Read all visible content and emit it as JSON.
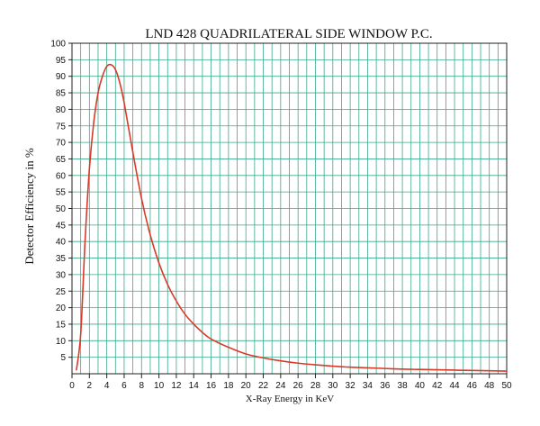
{
  "chart_data": {
    "type": "line",
    "title": "LND 428 QUADRILATERAL SIDE WINDOW P.C.",
    "xlabel": "X-Ray Energy in KeV",
    "ylabel": "Detector Efficiency in %",
    "xlim": [
      0,
      50
    ],
    "ylim": [
      0,
      100
    ],
    "xticks": [
      0,
      2,
      4,
      6,
      8,
      10,
      12,
      14,
      16,
      18,
      20,
      22,
      24,
      26,
      28,
      30,
      32,
      34,
      36,
      38,
      40,
      42,
      44,
      46,
      48,
      50
    ],
    "yticks": [
      5,
      10,
      15,
      20,
      25,
      30,
      35,
      40,
      45,
      50,
      55,
      60,
      65,
      70,
      75,
      80,
      85,
      90,
      95,
      100
    ],
    "grid": true,
    "colors": {
      "curve": "#d83a2a",
      "grid": "#3aa88a"
    },
    "series": [
      {
        "x": [
          0.5,
          1,
          1.5,
          2,
          2.5,
          3,
          3.5,
          4,
          4.5,
          5,
          5.5,
          6,
          7,
          8,
          9,
          10,
          11,
          12,
          13,
          14,
          15,
          16,
          18,
          20,
          22,
          24,
          26,
          28,
          30,
          32,
          34,
          36,
          38,
          40,
          42,
          44,
          46,
          48,
          50
        ],
        "y": [
          1,
          12,
          40,
          62,
          76,
          85,
          90,
          93,
          93.5,
          92,
          88,
          82,
          67,
          53,
          42,
          33.5,
          27,
          22,
          18,
          15,
          12.5,
          10.5,
          8,
          6,
          4.8,
          3.9,
          3.2,
          2.7,
          2.3,
          2,
          1.8,
          1.6,
          1.4,
          1.3,
          1.2,
          1.1,
          1,
          0.9,
          0.8
        ]
      }
    ]
  }
}
